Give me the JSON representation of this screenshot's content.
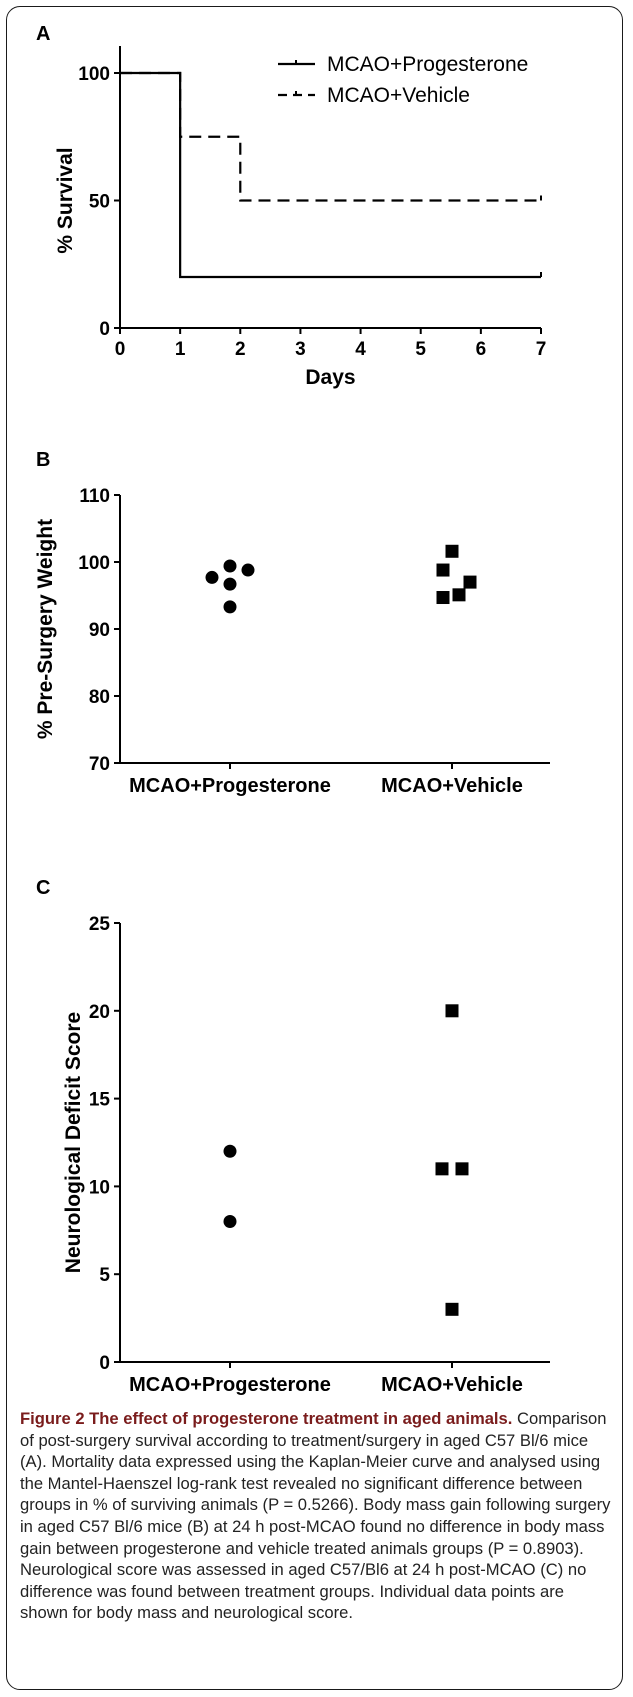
{
  "chart_data": [
    {
      "type": "line",
      "panel_label": "A",
      "title": "",
      "xlabel": "Days",
      "ylabel": "% Survival",
      "xlim": [
        0,
        7
      ],
      "ylim": [
        0,
        100
      ],
      "xticks": [
        "0",
        "1",
        "2",
        "3",
        "4",
        "5",
        "6",
        "7"
      ],
      "yticks": [
        "0",
        "50",
        "100"
      ],
      "step": true,
      "legend_position": "top-right",
      "series": [
        {
          "name": "MCAO+Progesterone",
          "style": "solid",
          "x": [
            0,
            1,
            1,
            7
          ],
          "y": [
            100,
            100,
            20,
            20
          ]
        },
        {
          "name": "MCAO+Vehicle",
          "style": "dashed",
          "x": [
            0,
            1,
            1,
            2,
            2,
            7
          ],
          "y": [
            100,
            100,
            75,
            75,
            50,
            50
          ]
        }
      ]
    },
    {
      "type": "scatter",
      "panel_label": "B",
      "title": "",
      "xlabel": "",
      "ylabel": "% Pre-Surgery Weight",
      "ylim": [
        70,
        110
      ],
      "yticks": [
        "70",
        "80",
        "90",
        "100",
        "110"
      ],
      "categories": [
        "MCAO+Progesterone",
        "MCAO+Vehicle"
      ],
      "series": [
        {
          "category": "MCAO+Progesterone",
          "marker": "circle",
          "values": [
            99.4,
            98.8,
            97.7,
            96.7,
            93.3
          ]
        },
        {
          "category": "MCAO+Vehicle",
          "marker": "square",
          "values": [
            101.6,
            98.8,
            97.0,
            95.1,
            94.7
          ]
        }
      ]
    },
    {
      "type": "scatter",
      "panel_label": "C",
      "title": "",
      "xlabel": "",
      "ylabel": "Neurological Deficit Score",
      "ylim": [
        0,
        25
      ],
      "yticks": [
        "0",
        "5",
        "10",
        "15",
        "20",
        "25"
      ],
      "categories": [
        "MCAO+Progesterone",
        "MCAO+Vehicle"
      ],
      "series": [
        {
          "category": "MCAO+Progesterone",
          "marker": "circle",
          "values": [
            12,
            8
          ]
        },
        {
          "category": "MCAO+Vehicle",
          "marker": "square",
          "values": [
            20,
            11,
            11,
            3
          ]
        }
      ]
    }
  ],
  "caption": {
    "title": "Figure 2 The effect of progesterone treatment in aged animals.",
    "body": " Comparison of post-surgery survival according to treatment/surgery in aged C57 Bl/6 mice (A). Mortality data expressed using the Kaplan-Meier curve and analysed using the Mantel-Haenszel log-rank test revealed no significant difference between groups in % of surviving animals (P = 0.5266). Body mass gain following surgery in aged C57 Bl/6 mice (B) at 24 h post-MCAO found no difference in body mass gain between progesterone and vehicle treated animals groups (P = 0.8903). Neurological score was assessed in aged C57/Bl6 at 24 h post-MCAO (C) no difference was found between treatment groups. Individual data points are shown for body mass and neurological score."
  }
}
